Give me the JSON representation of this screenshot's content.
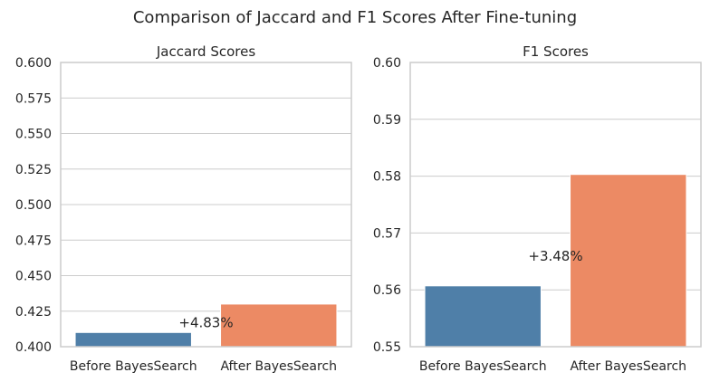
{
  "figure": {
    "title": "Comparison of Jaccard and F1 Scores After Fine-tuning"
  },
  "chart_data": [
    {
      "type": "bar",
      "title": "Jaccard Scores",
      "categories": [
        "Before BayesSearch",
        "After BayesSearch"
      ],
      "values": [
        0.41,
        0.43
      ],
      "colors": [
        "#4f7fa8",
        "#ec8a64"
      ],
      "ylim": [
        0.4,
        0.6
      ],
      "yticks": [
        0.4,
        0.425,
        0.45,
        0.475,
        0.5,
        0.525,
        0.55,
        0.575,
        0.6
      ],
      "ytick_labels": [
        "0.400",
        "0.425",
        "0.450",
        "0.475",
        "0.500",
        "0.525",
        "0.550",
        "0.575",
        "0.600"
      ],
      "annotation": "+4.83%",
      "annotation_y": 0.417,
      "grid": true,
      "xlabel": "",
      "ylabel": ""
    },
    {
      "type": "bar",
      "title": "F1 Scores",
      "categories": [
        "Before BayesSearch",
        "After BayesSearch"
      ],
      "values": [
        0.5607,
        0.5803
      ],
      "colors": [
        "#4f7fa8",
        "#ec8a64"
      ],
      "ylim": [
        0.55,
        0.6
      ],
      "yticks": [
        0.55,
        0.56,
        0.57,
        0.58,
        0.59,
        0.6
      ],
      "ytick_labels": [
        "0.55",
        "0.56",
        "0.57",
        "0.58",
        "0.59",
        "0.60"
      ],
      "annotation": "+3.48%",
      "annotation_y": 0.5659,
      "grid": true,
      "xlabel": "",
      "ylabel": ""
    }
  ]
}
